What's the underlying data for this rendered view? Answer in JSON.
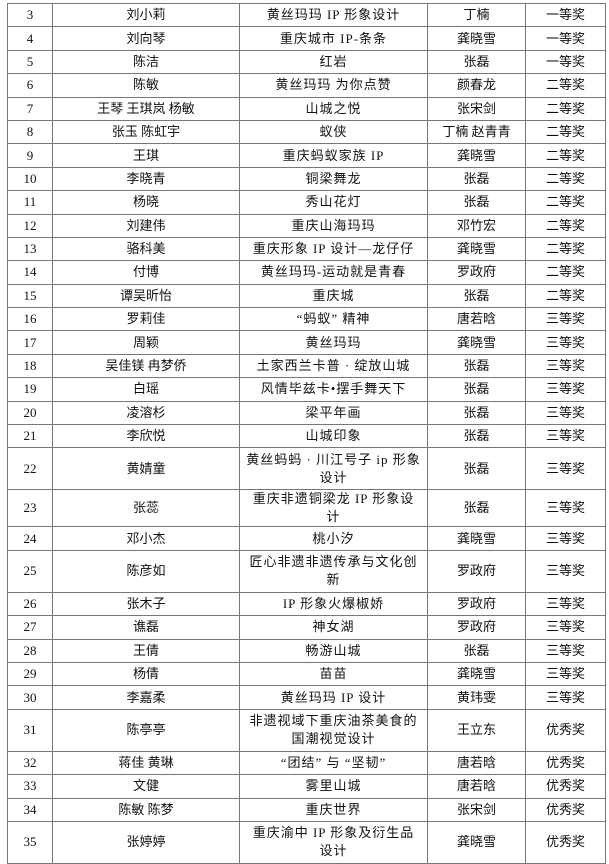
{
  "rows": [
    {
      "no": "3",
      "names": "刘小莉",
      "project": "黄丝玛玛 IP 形象设计",
      "teacher": "丁楠",
      "award": "一等奖"
    },
    {
      "no": "4",
      "names": "刘向琴",
      "project": "重庆城市 IP-条条",
      "teacher": "龚晓雪",
      "award": "一等奖"
    },
    {
      "no": "5",
      "names": "陈洁",
      "project": "红岩",
      "teacher": "张磊",
      "award": "一等奖"
    },
    {
      "no": "6",
      "names": "陈敏",
      "project": "黄丝玛玛 为你点赞",
      "teacher": "颜春龙",
      "award": "二等奖"
    },
    {
      "no": "7",
      "names": "王琴 王琪岚 杨敏",
      "project": "山城之悦",
      "teacher": "张宋剑",
      "award": "二等奖"
    },
    {
      "no": "8",
      "names": "张玉 陈虹宇",
      "project": "蚁侠",
      "teacher": "丁楠 赵青青",
      "award": "二等奖"
    },
    {
      "no": "9",
      "names": "王琪",
      "project": "重庆蚂蚁家族 IP",
      "teacher": "龚晓雪",
      "award": "二等奖"
    },
    {
      "no": "10",
      "names": "李晓青",
      "project": "铜梁舞龙",
      "teacher": "张磊",
      "award": "二等奖"
    },
    {
      "no": "11",
      "names": "杨晓",
      "project": "秀山花灯",
      "teacher": "张磊",
      "award": "二等奖"
    },
    {
      "no": "12",
      "names": "刘建伟",
      "project": "重庆山海玛玛",
      "teacher": "邓竹宏",
      "award": "二等奖"
    },
    {
      "no": "13",
      "names": "骆科美",
      "project": "重庆形象 IP 设计—龙仔仔",
      "teacher": "龚晓雪",
      "award": "二等奖"
    },
    {
      "no": "14",
      "names": "付博",
      "project": "黄丝玛玛-运动就是青春",
      "teacher": "罗政府",
      "award": "二等奖"
    },
    {
      "no": "15",
      "names": "谭吴昕怡",
      "project": "重庆城",
      "teacher": "张磊",
      "award": "二等奖"
    },
    {
      "no": "16",
      "names": "罗莉佳",
      "project": "“蚂蚁” 精神",
      "teacher": "唐若晗",
      "award": "三等奖"
    },
    {
      "no": "17",
      "names": "周颖",
      "project": "黄丝玛玛",
      "teacher": "龚晓雪",
      "award": "三等奖"
    },
    {
      "no": "18",
      "names": "吴佳镁 冉梦侨",
      "project": "土家西兰卡普 · 绽放山城",
      "teacher": "张磊",
      "award": "三等奖"
    },
    {
      "no": "19",
      "names": "白瑶",
      "project": "风情毕兹卡•摆手舞天下",
      "teacher": "张磊",
      "award": "三等奖"
    },
    {
      "no": "20",
      "names": "凌溶杉",
      "project": "梁平年画",
      "teacher": "张磊",
      "award": "三等奖"
    },
    {
      "no": "21",
      "names": "李欣悦",
      "project": "山城印象",
      "teacher": "张磊",
      "award": "三等奖"
    },
    {
      "no": "22",
      "names": "黄婧童",
      "project": "黄丝蚂蚂 · 川江号子 ip 形象设计",
      "teacher": "张磊",
      "award": "三等奖"
    },
    {
      "no": "23",
      "names": "张蕊",
      "project": "重庆非遗铜梁龙 IP 形象设计",
      "teacher": "张磊",
      "award": "三等奖"
    },
    {
      "no": "24",
      "names": "邓小杰",
      "project": "桃小汐",
      "teacher": "龚晓雪",
      "award": "三等奖"
    },
    {
      "no": "25",
      "names": "陈彦如",
      "project": "匠心非遗非遗传承与文化创新",
      "teacher": "罗政府",
      "award": "三等奖"
    },
    {
      "no": "26",
      "names": "张木子",
      "project": "IP 形象火爆椒娇",
      "teacher": "罗政府",
      "award": "三等奖"
    },
    {
      "no": "27",
      "names": "谯磊",
      "project": "神女湖",
      "teacher": "罗政府",
      "award": "三等奖"
    },
    {
      "no": "28",
      "names": "王倩",
      "project": "畅游山城",
      "teacher": "张磊",
      "award": "三等奖"
    },
    {
      "no": "29",
      "names": "杨倩",
      "project": "苗苗",
      "teacher": "龚晓雪",
      "award": "三等奖"
    },
    {
      "no": "30",
      "names": "李嘉柔",
      "project": "黄丝玛玛 IP 设计",
      "teacher": "黄玮雯",
      "award": "三等奖"
    },
    {
      "no": "31",
      "names": "陈亭亭",
      "project": "非遗视域下重庆油茶美食的国潮视觉设计",
      "teacher": "王立东",
      "award": "优秀奖"
    },
    {
      "no": "32",
      "names": "蒋佳 黄琳",
      "project": "“团结” 与 “坚韧”",
      "teacher": "唐若晗",
      "award": "优秀奖"
    },
    {
      "no": "33",
      "names": "文健",
      "project": "雾里山城",
      "teacher": "唐若晗",
      "award": "优秀奖"
    },
    {
      "no": "34",
      "names": "陈敏 陈梦",
      "project": "重庆世界",
      "teacher": "张宋剑",
      "award": "优秀奖"
    },
    {
      "no": "35",
      "names": "张婷婷",
      "project": "重庆渝中 IP 形象及衍生品设计",
      "teacher": "龚晓雪",
      "award": "优秀奖"
    }
  ]
}
